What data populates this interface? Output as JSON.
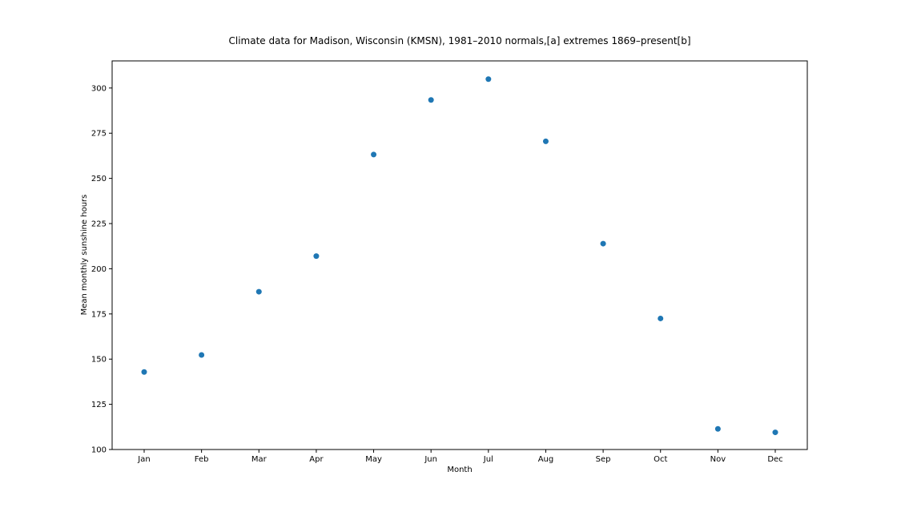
{
  "chart_data": {
    "type": "scatter",
    "title": "Climate data for Madison, Wisconsin (KMSN), 1981–2010 normals,[a] extremes 1869–present[b]",
    "xlabel": "Month",
    "ylabel": "Mean monthly sunshine hours",
    "categories": [
      "Jan",
      "Feb",
      "Mar",
      "Apr",
      "May",
      "Jun",
      "Jul",
      "Aug",
      "Sep",
      "Oct",
      "Nov",
      "Dec"
    ],
    "values": [
      142.9,
      152.3,
      187.3,
      207.0,
      263.2,
      293.4,
      304.9,
      270.5,
      213.9,
      172.5,
      111.4,
      109.5
    ],
    "yticks": [
      100,
      125,
      150,
      175,
      200,
      225,
      250,
      275,
      300
    ],
    "ylim": [
      100,
      315
    ],
    "grid": false,
    "colors": {
      "marker": "#1f77b4",
      "axes": "#000000"
    }
  }
}
